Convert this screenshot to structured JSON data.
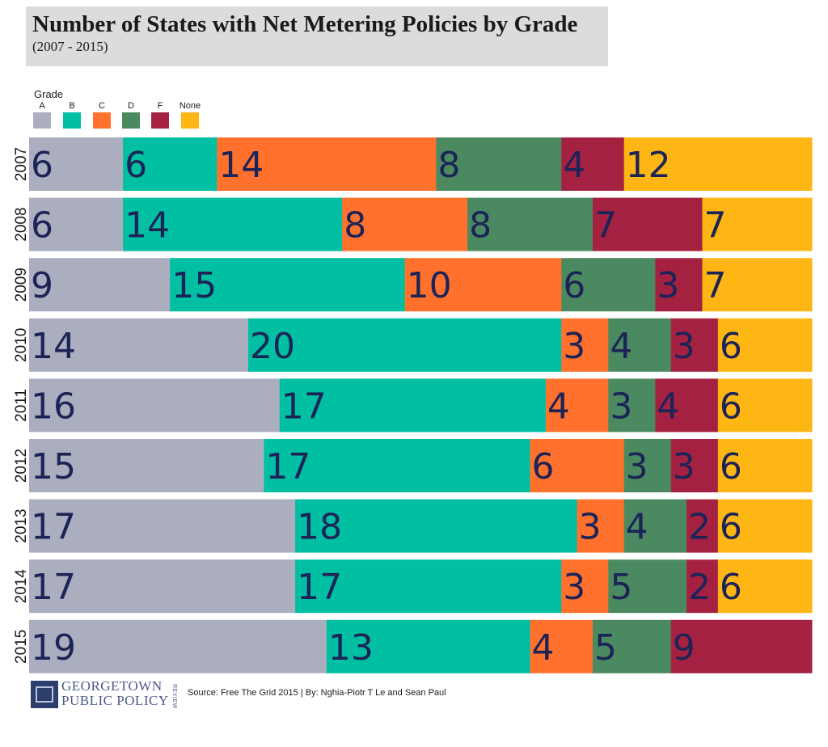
{
  "header": {
    "title": "Number of States with Net Metering Policies by Grade",
    "subtitle": "(2007 - 2015)"
  },
  "legend": {
    "title": "Grade",
    "items": [
      {
        "label": "A",
        "color": "#abaebe"
      },
      {
        "label": "B",
        "color": "#00bfa2"
      },
      {
        "label": "C",
        "color": "#ff712c"
      },
      {
        "label": "D",
        "color": "#4b8a60"
      },
      {
        "label": "F",
        "color": "#a52141"
      },
      {
        "label": "None",
        "color": "#fdb614"
      }
    ]
  },
  "footer": {
    "logo_line1": "GEORGETOWN",
    "logo_line2": "PUBLIC POLICY",
    "logo_side": "REVIEW",
    "source": "Source: Free The Grid 2015 | By: Nghia-Piotr T Le and Sean Paul"
  },
  "chart_data": {
    "type": "bar",
    "orientation": "horizontal",
    "stacked": true,
    "title": "Number of States with Net Metering Policies by Grade",
    "subtitle": "(2007 - 2015)",
    "label_color": "#1c2457",
    "categories": [
      "2007",
      "2008",
      "2009",
      "2010",
      "2011",
      "2012",
      "2013",
      "2014",
      "2015"
    ],
    "series": [
      {
        "name": "A",
        "color": "#abaebe",
        "values": [
          6,
          6,
          9,
          14,
          16,
          15,
          17,
          17,
          19
        ]
      },
      {
        "name": "B",
        "color": "#00bfa2",
        "values": [
          6,
          14,
          15,
          20,
          17,
          17,
          18,
          17,
          13
        ]
      },
      {
        "name": "C",
        "color": "#ff712c",
        "values": [
          14,
          8,
          10,
          3,
          4,
          6,
          3,
          3,
          4
        ]
      },
      {
        "name": "D",
        "color": "#4b8a60",
        "values": [
          8,
          8,
          6,
          4,
          3,
          3,
          4,
          5,
          5
        ]
      },
      {
        "name": "F",
        "color": "#a52141",
        "values": [
          4,
          7,
          3,
          3,
          4,
          3,
          2,
          2,
          9
        ]
      },
      {
        "name": "None",
        "color": "#fdb614",
        "values": [
          12,
          7,
          7,
          6,
          6,
          6,
          6,
          6,
          0
        ]
      }
    ],
    "xlim": [
      0,
      50
    ],
    "legend_position": "top-left",
    "grid": false
  }
}
